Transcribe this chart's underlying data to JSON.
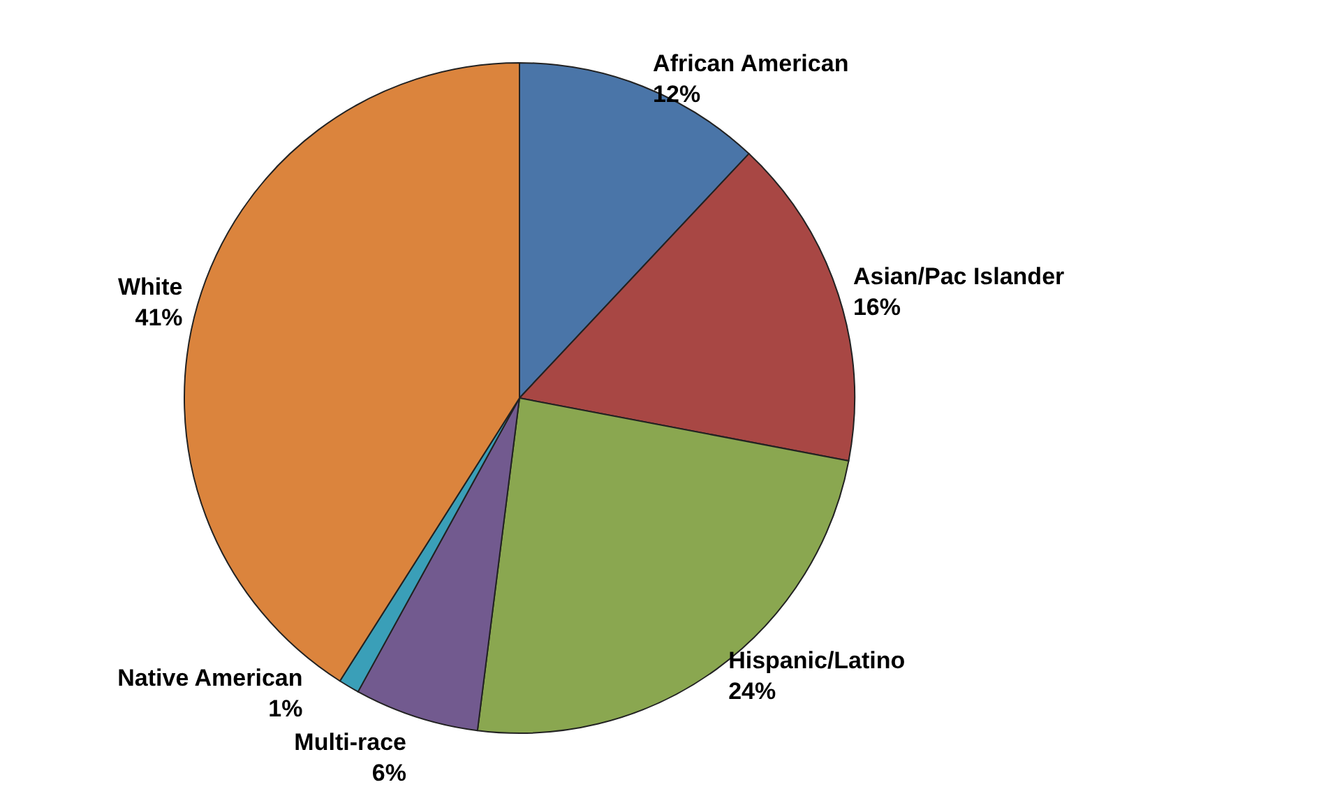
{
  "chart_data": {
    "type": "pie",
    "categories": [
      "African American",
      "Asian/Pac Islander",
      "Hispanic/Latino",
      "Multi-race",
      "Native American",
      "White"
    ],
    "values": [
      12,
      16,
      24,
      6,
      1,
      41
    ],
    "colors": [
      "#4a75a8",
      "#a84744",
      "#8aa750",
      "#725a8f",
      "#3a9fb8",
      "#db843d"
    ],
    "value_labels": [
      "12%",
      "16%",
      "24%",
      "6%",
      "1%",
      "41%"
    ],
    "legend": false
  }
}
